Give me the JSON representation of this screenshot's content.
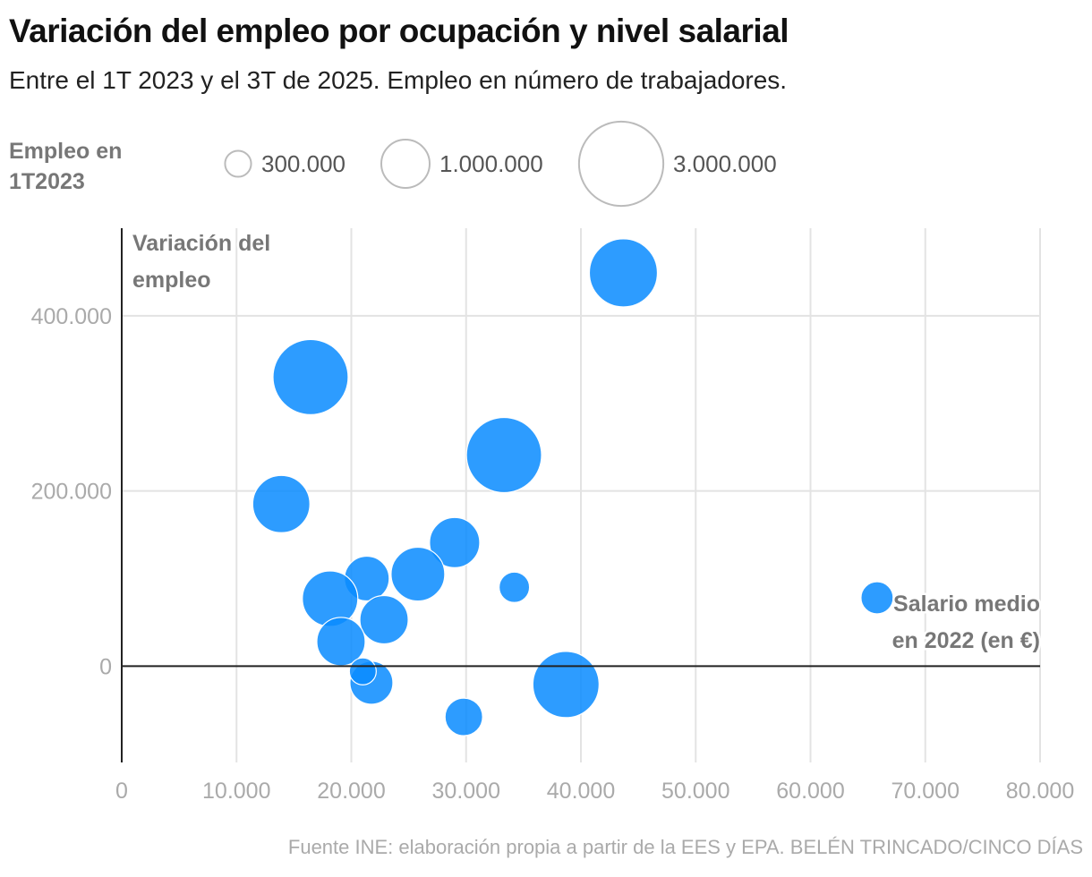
{
  "chart_data": {
    "type": "scatter",
    "title": "Variación del empleo por ocupación y nivel salarial",
    "subtitle": "Entre el 1T 2023 y el 3T de 2025. Empleo en número de trabajadores.",
    "xlabel": "Salario medio en 2022 (en €)",
    "xlabel_lines": [
      "Salario medio",
      "en 2022 (en €)"
    ],
    "ylabel": "Variación del empleo",
    "ylabel_lines": [
      "Variación del",
      "empleo"
    ],
    "xlim": [
      0,
      80000
    ],
    "ylim": [
      -110000,
      500000
    ],
    "x_ticks": [
      0,
      10000,
      20000,
      30000,
      40000,
      50000,
      60000,
      70000,
      80000
    ],
    "x_tick_labels": [
      "0",
      "10.000",
      "20.000",
      "30.000",
      "40.000",
      "50.000",
      "60.000",
      "70.000",
      "80.000"
    ],
    "y_ticks": [
      0,
      200000,
      400000
    ],
    "y_tick_labels": [
      "0",
      "200.000",
      "400.000"
    ],
    "grid": true,
    "size_legend": {
      "title": "Empleo en 1T2023",
      "title_lines": [
        "Empleo en",
        "1T2023"
      ],
      "values": [
        300000,
        1000000,
        3000000
      ],
      "labels": [
        "300.000",
        "1.000.000",
        "3.000.000"
      ]
    },
    "bubble_color": "#0a8cff",
    "points": [
      {
        "x": 43700,
        "y": 449000,
        "size": 1910000
      },
      {
        "x": 16450,
        "y": 330000,
        "size": 2330000
      },
      {
        "x": 33300,
        "y": 241000,
        "size": 2330000
      },
      {
        "x": 13900,
        "y": 185000,
        "size": 1350000
      },
      {
        "x": 29000,
        "y": 141000,
        "size": 1040000
      },
      {
        "x": 34200,
        "y": 90000,
        "size": 382000
      },
      {
        "x": 65800,
        "y": 78000,
        "size": 428000
      },
      {
        "x": 21350,
        "y": 100000,
        "size": 826000
      },
      {
        "x": 25800,
        "y": 105000,
        "size": 1190000
      },
      {
        "x": 18150,
        "y": 77000,
        "size": 1270000
      },
      {
        "x": 22850,
        "y": 53000,
        "size": 964000
      },
      {
        "x": 19100,
        "y": 28000,
        "size": 964000
      },
      {
        "x": 21750,
        "y": -19000,
        "size": 762000
      },
      {
        "x": 38700,
        "y": -21000,
        "size": 1810000
      },
      {
        "x": 29800,
        "y": -58000,
        "size": 583000
      },
      {
        "x": 21000,
        "y": -6000,
        "size": 298000
      }
    ]
  },
  "source": "Fuente INE: elaboración propia a partir de la EES y EPA. BELÉN TRINCADO/CINCO DÍAS"
}
